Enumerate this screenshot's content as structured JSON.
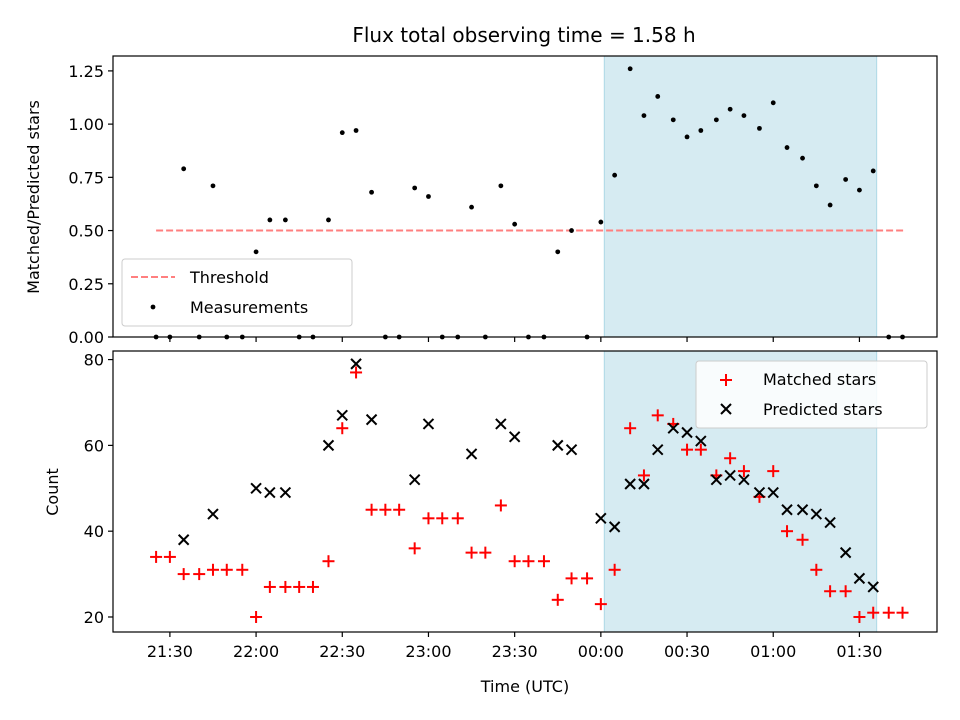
{
  "chart_data": [
    {
      "type": "scatter",
      "title": "Flux total observing time = 1.58 h",
      "xlabel": "",
      "ylabel": "Matched/Predicted stars",
      "x_units": "hours since 21:30 UTC",
      "xlim": [
        -0.33,
        4.45
      ],
      "ylim": [
        0.0,
        1.32
      ],
      "y_ticks": [
        0.0,
        0.25,
        0.5,
        0.75,
        1.0,
        1.25
      ],
      "y_tick_labels": [
        "0.00",
        "0.25",
        "0.50",
        "0.75",
        "1.00",
        "1.25"
      ],
      "highlight_span": {
        "x_start": 2.52,
        "x_end": 4.1,
        "color": "#add8e6"
      },
      "threshold": {
        "name": "Threshold",
        "y": 0.5,
        "x_start": -0.08,
        "x_end": 4.27,
        "color": "#ff7f7f"
      },
      "series": [
        {
          "name": "Measurements",
          "color": "#000000",
          "points": [
            [
              -0.08,
              0.0
            ],
            [
              0.0,
              0.0
            ],
            [
              0.08,
              0.79
            ],
            [
              0.17,
              0.0
            ],
            [
              0.25,
              0.71
            ],
            [
              0.33,
              0.0
            ],
            [
              0.42,
              0.0
            ],
            [
              0.5,
              0.4
            ],
            [
              0.58,
              0.55
            ],
            [
              0.67,
              0.55
            ],
            [
              0.75,
              0.0
            ],
            [
              0.83,
              0.0
            ],
            [
              0.92,
              0.55
            ],
            [
              1.0,
              0.96
            ],
            [
              1.08,
              0.97
            ],
            [
              1.17,
              0.68
            ],
            [
              1.25,
              0.0
            ],
            [
              1.33,
              0.0
            ],
            [
              1.42,
              0.7
            ],
            [
              1.5,
              0.66
            ],
            [
              1.58,
              0.0
            ],
            [
              1.67,
              0.0
            ],
            [
              1.75,
              0.61
            ],
            [
              1.83,
              0.0
            ],
            [
              1.92,
              0.71
            ],
            [
              2.0,
              0.53
            ],
            [
              2.08,
              0.0
            ],
            [
              2.17,
              0.0
            ],
            [
              2.25,
              0.4
            ],
            [
              2.33,
              0.5
            ],
            [
              2.42,
              0.0
            ],
            [
              2.5,
              0.54
            ],
            [
              2.58,
              0.76
            ],
            [
              2.67,
              1.26
            ],
            [
              2.75,
              1.04
            ],
            [
              2.83,
              1.13
            ],
            [
              2.92,
              1.02
            ],
            [
              3.0,
              0.94
            ],
            [
              3.08,
              0.97
            ],
            [
              3.17,
              1.02
            ],
            [
              3.25,
              1.07
            ],
            [
              3.33,
              1.04
            ],
            [
              3.42,
              0.98
            ],
            [
              3.5,
              1.1
            ],
            [
              3.58,
              0.89
            ],
            [
              3.67,
              0.84
            ],
            [
              3.75,
              0.71
            ],
            [
              3.83,
              0.62
            ],
            [
              3.92,
              0.74
            ],
            [
              4.0,
              0.69
            ],
            [
              4.08,
              0.78
            ],
            [
              4.17,
              0.0
            ],
            [
              4.25,
              0.0
            ]
          ]
        }
      ],
      "legend": {
        "position": "lower-left",
        "entries": [
          "Threshold",
          "Measurements"
        ]
      }
    },
    {
      "type": "scatter",
      "title": "",
      "xlabel": "Time (UTC)",
      "ylabel": "Count",
      "x_units": "hours since 21:30 UTC",
      "xlim": [
        -0.33,
        4.45
      ],
      "ylim": [
        16.5,
        82.0
      ],
      "y_ticks": [
        20,
        40,
        60,
        80
      ],
      "y_tick_labels": [
        "20",
        "40",
        "60",
        "80"
      ],
      "x_ticks": [
        0.0,
        0.5,
        1.0,
        1.5,
        2.0,
        2.5,
        3.0,
        3.5,
        4.0
      ],
      "x_tick_labels": [
        "21:30",
        "22:00",
        "22:30",
        "23:00",
        "23:30",
        "00:00",
        "00:30",
        "01:00",
        "01:30"
      ],
      "highlight_span": {
        "x_start": 2.52,
        "x_end": 4.1,
        "color": "#add8e6"
      },
      "series": [
        {
          "name": "Matched stars",
          "marker": "plus",
          "color": "#ff0000",
          "points": [
            [
              -0.08,
              34
            ],
            [
              0.0,
              34
            ],
            [
              0.08,
              30
            ],
            [
              0.17,
              30
            ],
            [
              0.25,
              31
            ],
            [
              0.33,
              31
            ],
            [
              0.42,
              31
            ],
            [
              0.5,
              20
            ],
            [
              0.58,
              27
            ],
            [
              0.67,
              27
            ],
            [
              0.75,
              27
            ],
            [
              0.83,
              27
            ],
            [
              0.92,
              33
            ],
            [
              1.0,
              64
            ],
            [
              1.08,
              77
            ],
            [
              1.17,
              45
            ],
            [
              1.25,
              45
            ],
            [
              1.33,
              45
            ],
            [
              1.42,
              36
            ],
            [
              1.5,
              43
            ],
            [
              1.58,
              43
            ],
            [
              1.67,
              43
            ],
            [
              1.75,
              35
            ],
            [
              1.83,
              35
            ],
            [
              1.92,
              46
            ],
            [
              2.0,
              33
            ],
            [
              2.08,
              33
            ],
            [
              2.17,
              33
            ],
            [
              2.25,
              24
            ],
            [
              2.33,
              29
            ],
            [
              2.42,
              29
            ],
            [
              2.5,
              23
            ],
            [
              2.58,
              31
            ],
            [
              2.67,
              64
            ],
            [
              2.75,
              53
            ],
            [
              2.83,
              67
            ],
            [
              2.92,
              65
            ],
            [
              3.0,
              59
            ],
            [
              3.08,
              59
            ],
            [
              3.17,
              53
            ],
            [
              3.25,
              57
            ],
            [
              3.33,
              54
            ],
            [
              3.42,
              48
            ],
            [
              3.5,
              54
            ],
            [
              3.58,
              40
            ],
            [
              3.67,
              38
            ],
            [
              3.75,
              31
            ],
            [
              3.83,
              26
            ],
            [
              3.92,
              26
            ],
            [
              4.0,
              20
            ],
            [
              4.08,
              21
            ],
            [
              4.17,
              21
            ],
            [
              4.25,
              21
            ]
          ]
        },
        {
          "name": "Predicted stars",
          "marker": "x",
          "color": "#000000",
          "points": [
            [
              0.08,
              38
            ],
            [
              0.25,
              44
            ],
            [
              0.5,
              50
            ],
            [
              0.58,
              49
            ],
            [
              0.67,
              49
            ],
            [
              0.92,
              60
            ],
            [
              1.0,
              67
            ],
            [
              1.08,
              79
            ],
            [
              1.17,
              66
            ],
            [
              1.42,
              52
            ],
            [
              1.5,
              65
            ],
            [
              1.75,
              58
            ],
            [
              1.92,
              65
            ],
            [
              2.0,
              62
            ],
            [
              2.25,
              60
            ],
            [
              2.33,
              59
            ],
            [
              2.5,
              43
            ],
            [
              2.58,
              41
            ],
            [
              2.67,
              51
            ],
            [
              2.75,
              51
            ],
            [
              2.83,
              59
            ],
            [
              2.92,
              64
            ],
            [
              3.0,
              63
            ],
            [
              3.08,
              61
            ],
            [
              3.17,
              52
            ],
            [
              3.25,
              53
            ],
            [
              3.33,
              52
            ],
            [
              3.42,
              49
            ],
            [
              3.5,
              49
            ],
            [
              3.58,
              45
            ],
            [
              3.67,
              45
            ],
            [
              3.75,
              44
            ],
            [
              3.83,
              42
            ],
            [
              3.92,
              35
            ],
            [
              4.0,
              29
            ],
            [
              4.08,
              27
            ]
          ]
        }
      ],
      "legend": {
        "position": "top-right",
        "entries": [
          "Matched stars",
          "Predicted stars"
        ]
      }
    }
  ]
}
